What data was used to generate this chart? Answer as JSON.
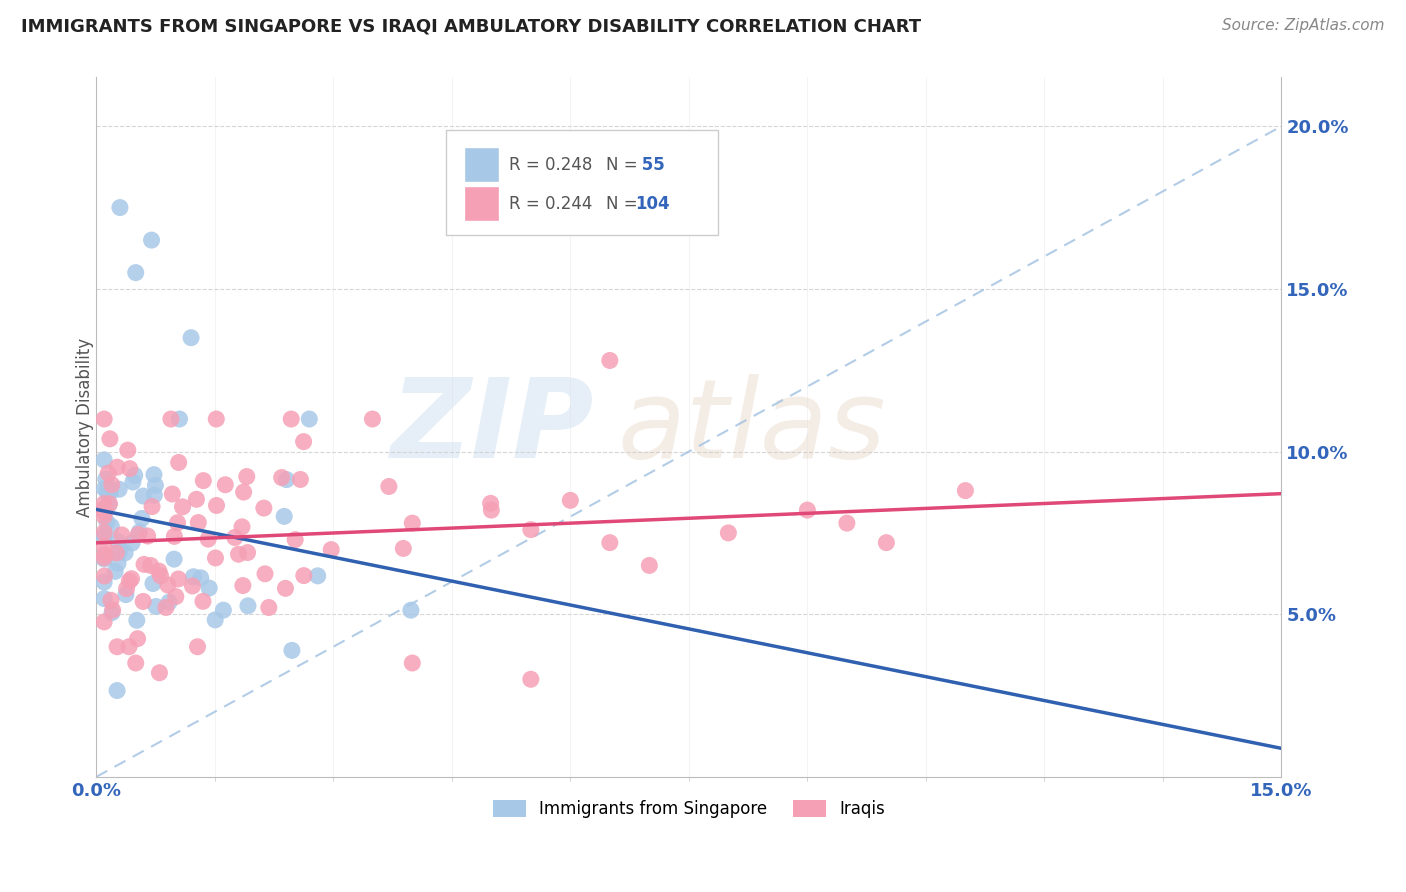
{
  "title": "IMMIGRANTS FROM SINGAPORE VS IRAQI AMBULATORY DISABILITY CORRELATION CHART",
  "source": "Source: ZipAtlas.com",
  "ylabel": "Ambulatory Disability",
  "xlim": [
    0.0,
    0.15
  ],
  "ylim": [
    0.0,
    0.215
  ],
  "legend_r1": "R = 0.248",
  "legend_n1": "N =  55",
  "legend_r2": "R = 0.244",
  "legend_n2": "N = 104",
  "singapore_color": "#a8c8e8",
  "iraq_color": "#f5a0b5",
  "singapore_line_color": "#3060b0",
  "iraq_line_color": "#e04878",
  "ref_line_color": "#a0c0e0",
  "sg_seed": 42,
  "iq_seed": 17
}
